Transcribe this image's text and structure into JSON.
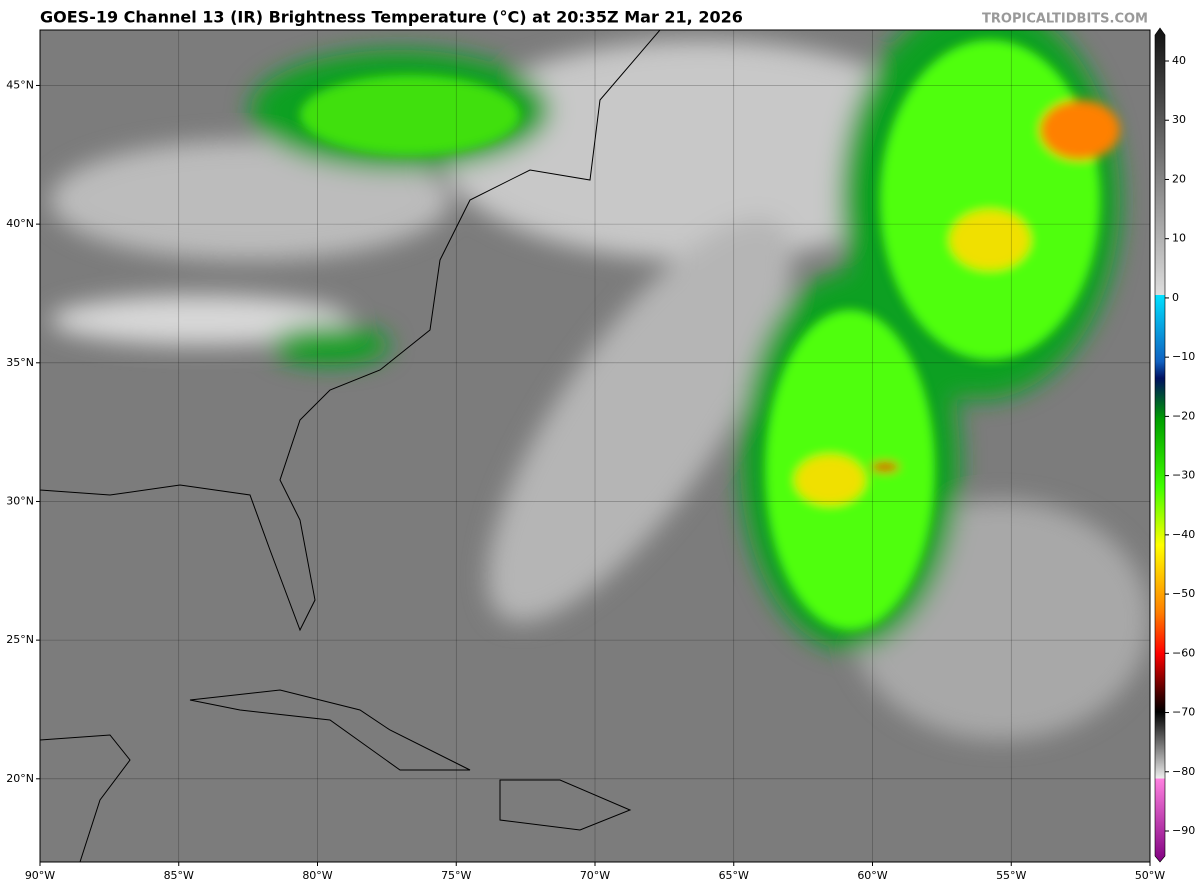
{
  "map": {
    "title": "GOES-19 Channel 13 (IR) Brightness Temperature (°C) at 20:35Z Mar 21, 2026",
    "credit": "TROPICALTIDBITS.COM",
    "lon_range": [
      -90,
      -50
    ],
    "lat_range": [
      17,
      47
    ],
    "lat_ticks": [
      {
        "value": 45,
        "label": "45°N"
      },
      {
        "value": 40,
        "label": "40°N"
      },
      {
        "value": 35,
        "label": "35°N"
      },
      {
        "value": 30,
        "label": "30°N"
      },
      {
        "value": 25,
        "label": "25°N"
      },
      {
        "value": 20,
        "label": "20°N"
      }
    ],
    "lon_ticks": [
      {
        "value": -90,
        "label": "90°W"
      },
      {
        "value": -85,
        "label": "85°W"
      },
      {
        "value": -80,
        "label": "80°W"
      },
      {
        "value": -75,
        "label": "75°W"
      },
      {
        "value": -70,
        "label": "70°W"
      },
      {
        "value": -65,
        "label": "65°W"
      },
      {
        "value": -60,
        "label": "60°W"
      },
      {
        "value": -55,
        "label": "55°W"
      },
      {
        "value": -50,
        "label": "50°W"
      }
    ],
    "colorbar": {
      "lim": [
        40,
        -90
      ],
      "ticks": [
        40,
        30,
        20,
        10,
        0,
        {
          "value": -10,
          "label": "−10"
        },
        {
          "value": -20,
          "label": "−20"
        },
        {
          "value": -30,
          "label": "−30"
        },
        {
          "value": -40,
          "label": "−40"
        },
        {
          "value": -50,
          "label": "−50"
        },
        {
          "value": -60,
          "label": "−60"
        },
        {
          "value": -70,
          "label": "−70"
        },
        {
          "value": -80,
          "label": "−80"
        },
        {
          "value": -90,
          "label": "−90"
        }
      ]
    }
  }
}
